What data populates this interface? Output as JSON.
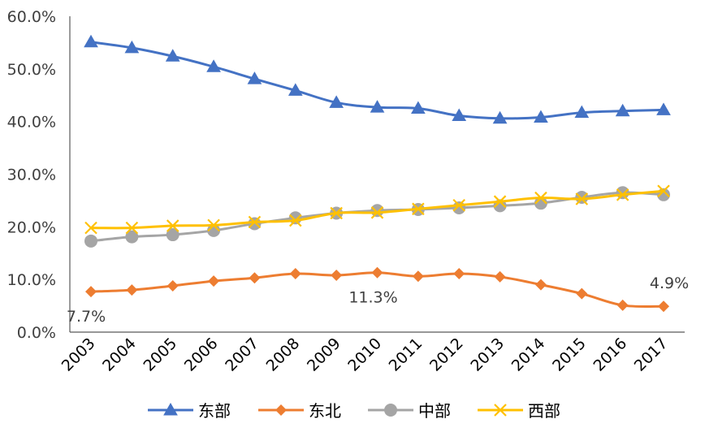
{
  "chart_data": {
    "type": "line",
    "title": "",
    "xlabel": "",
    "ylabel": "",
    "categories": [
      "2003",
      "2004",
      "2005",
      "2006",
      "2007",
      "2008",
      "2009",
      "2010",
      "2011",
      "2012",
      "2013",
      "2014",
      "2015",
      "2016",
      "2017"
    ],
    "ylim": [
      0,
      60
    ],
    "yticks": [
      "0.0%",
      "10.0%",
      "20.0%",
      "30.0%",
      "40.0%",
      "50.0%",
      "60.0%"
    ],
    "grid": false,
    "legend_position": "bottom",
    "series": [
      {
        "name": "东部",
        "color": "#4472C4",
        "marker": "triangle",
        "values": [
          55.1,
          54.0,
          52.4,
          50.4,
          48.1,
          45.9,
          43.6,
          42.7,
          42.5,
          41.1,
          40.6,
          40.8,
          41.7,
          42.0,
          42.2
        ]
      },
      {
        "name": "东北",
        "color": "#ED7D31",
        "marker": "diamond",
        "values": [
          7.7,
          8.0,
          8.8,
          9.7,
          10.3,
          11.1,
          10.8,
          11.3,
          10.6,
          11.1,
          10.5,
          9.0,
          7.3,
          5.1,
          4.9
        ]
      },
      {
        "name": "中部",
        "color": "#A5A5A5",
        "marker": "circle",
        "values": [
          17.3,
          18.1,
          18.5,
          19.3,
          20.6,
          21.7,
          22.6,
          23.1,
          23.3,
          23.6,
          24.0,
          24.5,
          25.6,
          26.5,
          26.1
        ]
      },
      {
        "name": "西部",
        "color": "#FFC000",
        "marker": "x",
        "values": [
          19.8,
          19.8,
          20.2,
          20.3,
          20.9,
          21.2,
          22.6,
          22.7,
          23.4,
          24.1,
          24.8,
          25.5,
          25.3,
          26.1,
          26.8
        ]
      }
    ],
    "annotations": [
      {
        "series": 1,
        "index": 0,
        "text": "7.7%"
      },
      {
        "series": 1,
        "index": 7,
        "text": "11.3%"
      },
      {
        "series": 1,
        "index": 14,
        "text": "4.9%"
      }
    ]
  }
}
